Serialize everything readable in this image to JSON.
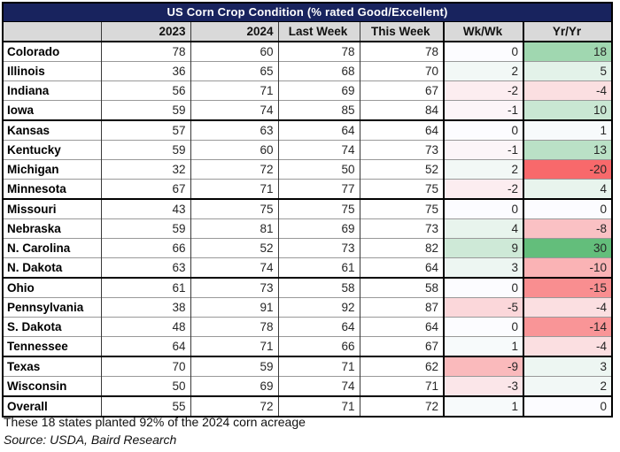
{
  "title": "US Corn Crop Condition (% rated Good/Excellent)",
  "header": {
    "col_state": "",
    "col_2023": "2023",
    "col_2024": "2024",
    "col_last_week": "Last Week",
    "col_this_week": "This Week",
    "col_wk_wk": "Wk/Wk",
    "col_yr_yr": "Yr/Yr"
  },
  "footnote": "These 18 states planted 92% of the 2024 corn acreage",
  "source_note": "Source: USDA, Baird Research",
  "colors": {
    "title_bg": "#18235E",
    "title_text": "#FFFFFF",
    "header_bg": "#D9D9D9",
    "scale_min_color": "#F8696B",
    "scale_mid_color": "#FCFCFF",
    "scale_max_color": "#63BE7B"
  },
  "chart_data": {
    "type": "table",
    "title": "US Corn Crop Condition (% rated Good/Excellent)",
    "columns": [
      "State",
      "2023",
      "2024",
      "Last Week",
      "This Week",
      "Wk/Wk",
      "Yr/Yr"
    ],
    "rows": [
      [
        "Colorado",
        78,
        60,
        78,
        78,
        0,
        18
      ],
      [
        "Illinois",
        36,
        65,
        68,
        70,
        2,
        5
      ],
      [
        "Indiana",
        56,
        71,
        69,
        67,
        -2,
        -4
      ],
      [
        "Iowa",
        59,
        74,
        85,
        84,
        -1,
        10
      ],
      [
        "Kansas",
        57,
        63,
        64,
        64,
        0,
        1
      ],
      [
        "Kentucky",
        59,
        60,
        74,
        73,
        -1,
        13
      ],
      [
        "Michigan",
        32,
        72,
        50,
        52,
        2,
        -20
      ],
      [
        "Minnesota",
        67,
        71,
        77,
        75,
        -2,
        4
      ],
      [
        "Missouri",
        43,
        75,
        75,
        75,
        0,
        0
      ],
      [
        "Nebraska",
        59,
        81,
        69,
        73,
        4,
        -8
      ],
      [
        "N. Carolina",
        66,
        52,
        73,
        82,
        9,
        30
      ],
      [
        "N. Dakota",
        63,
        74,
        61,
        64,
        3,
        -10
      ],
      [
        "Ohio",
        61,
        73,
        58,
        58,
        0,
        -15
      ],
      [
        "Pennsylvania",
        38,
        91,
        92,
        87,
        -5,
        -4
      ],
      [
        "S. Dakota",
        48,
        78,
        64,
        64,
        0,
        -14
      ],
      [
        "Tennessee",
        64,
        71,
        66,
        67,
        1,
        -4
      ],
      [
        "Texas",
        70,
        59,
        71,
        62,
        -9,
        3
      ],
      [
        "Wisconsin",
        50,
        69,
        74,
        71,
        -3,
        2
      ],
      [
        "Overall",
        55,
        72,
        71,
        72,
        1,
        0
      ]
    ],
    "group_start_rows": [
      4,
      8,
      12,
      16,
      18
    ],
    "conditional_format": {
      "applies_to_columns": [
        "Wk/Wk",
        "Yr/Yr"
      ],
      "scale": {
        "min_value": -20,
        "min_color": "#F8696B",
        "mid_value": 0,
        "mid_color": "#FCFCFF",
        "max_value": 30,
        "max_color": "#63BE7B"
      }
    },
    "legend_position": "none",
    "grid": true
  }
}
